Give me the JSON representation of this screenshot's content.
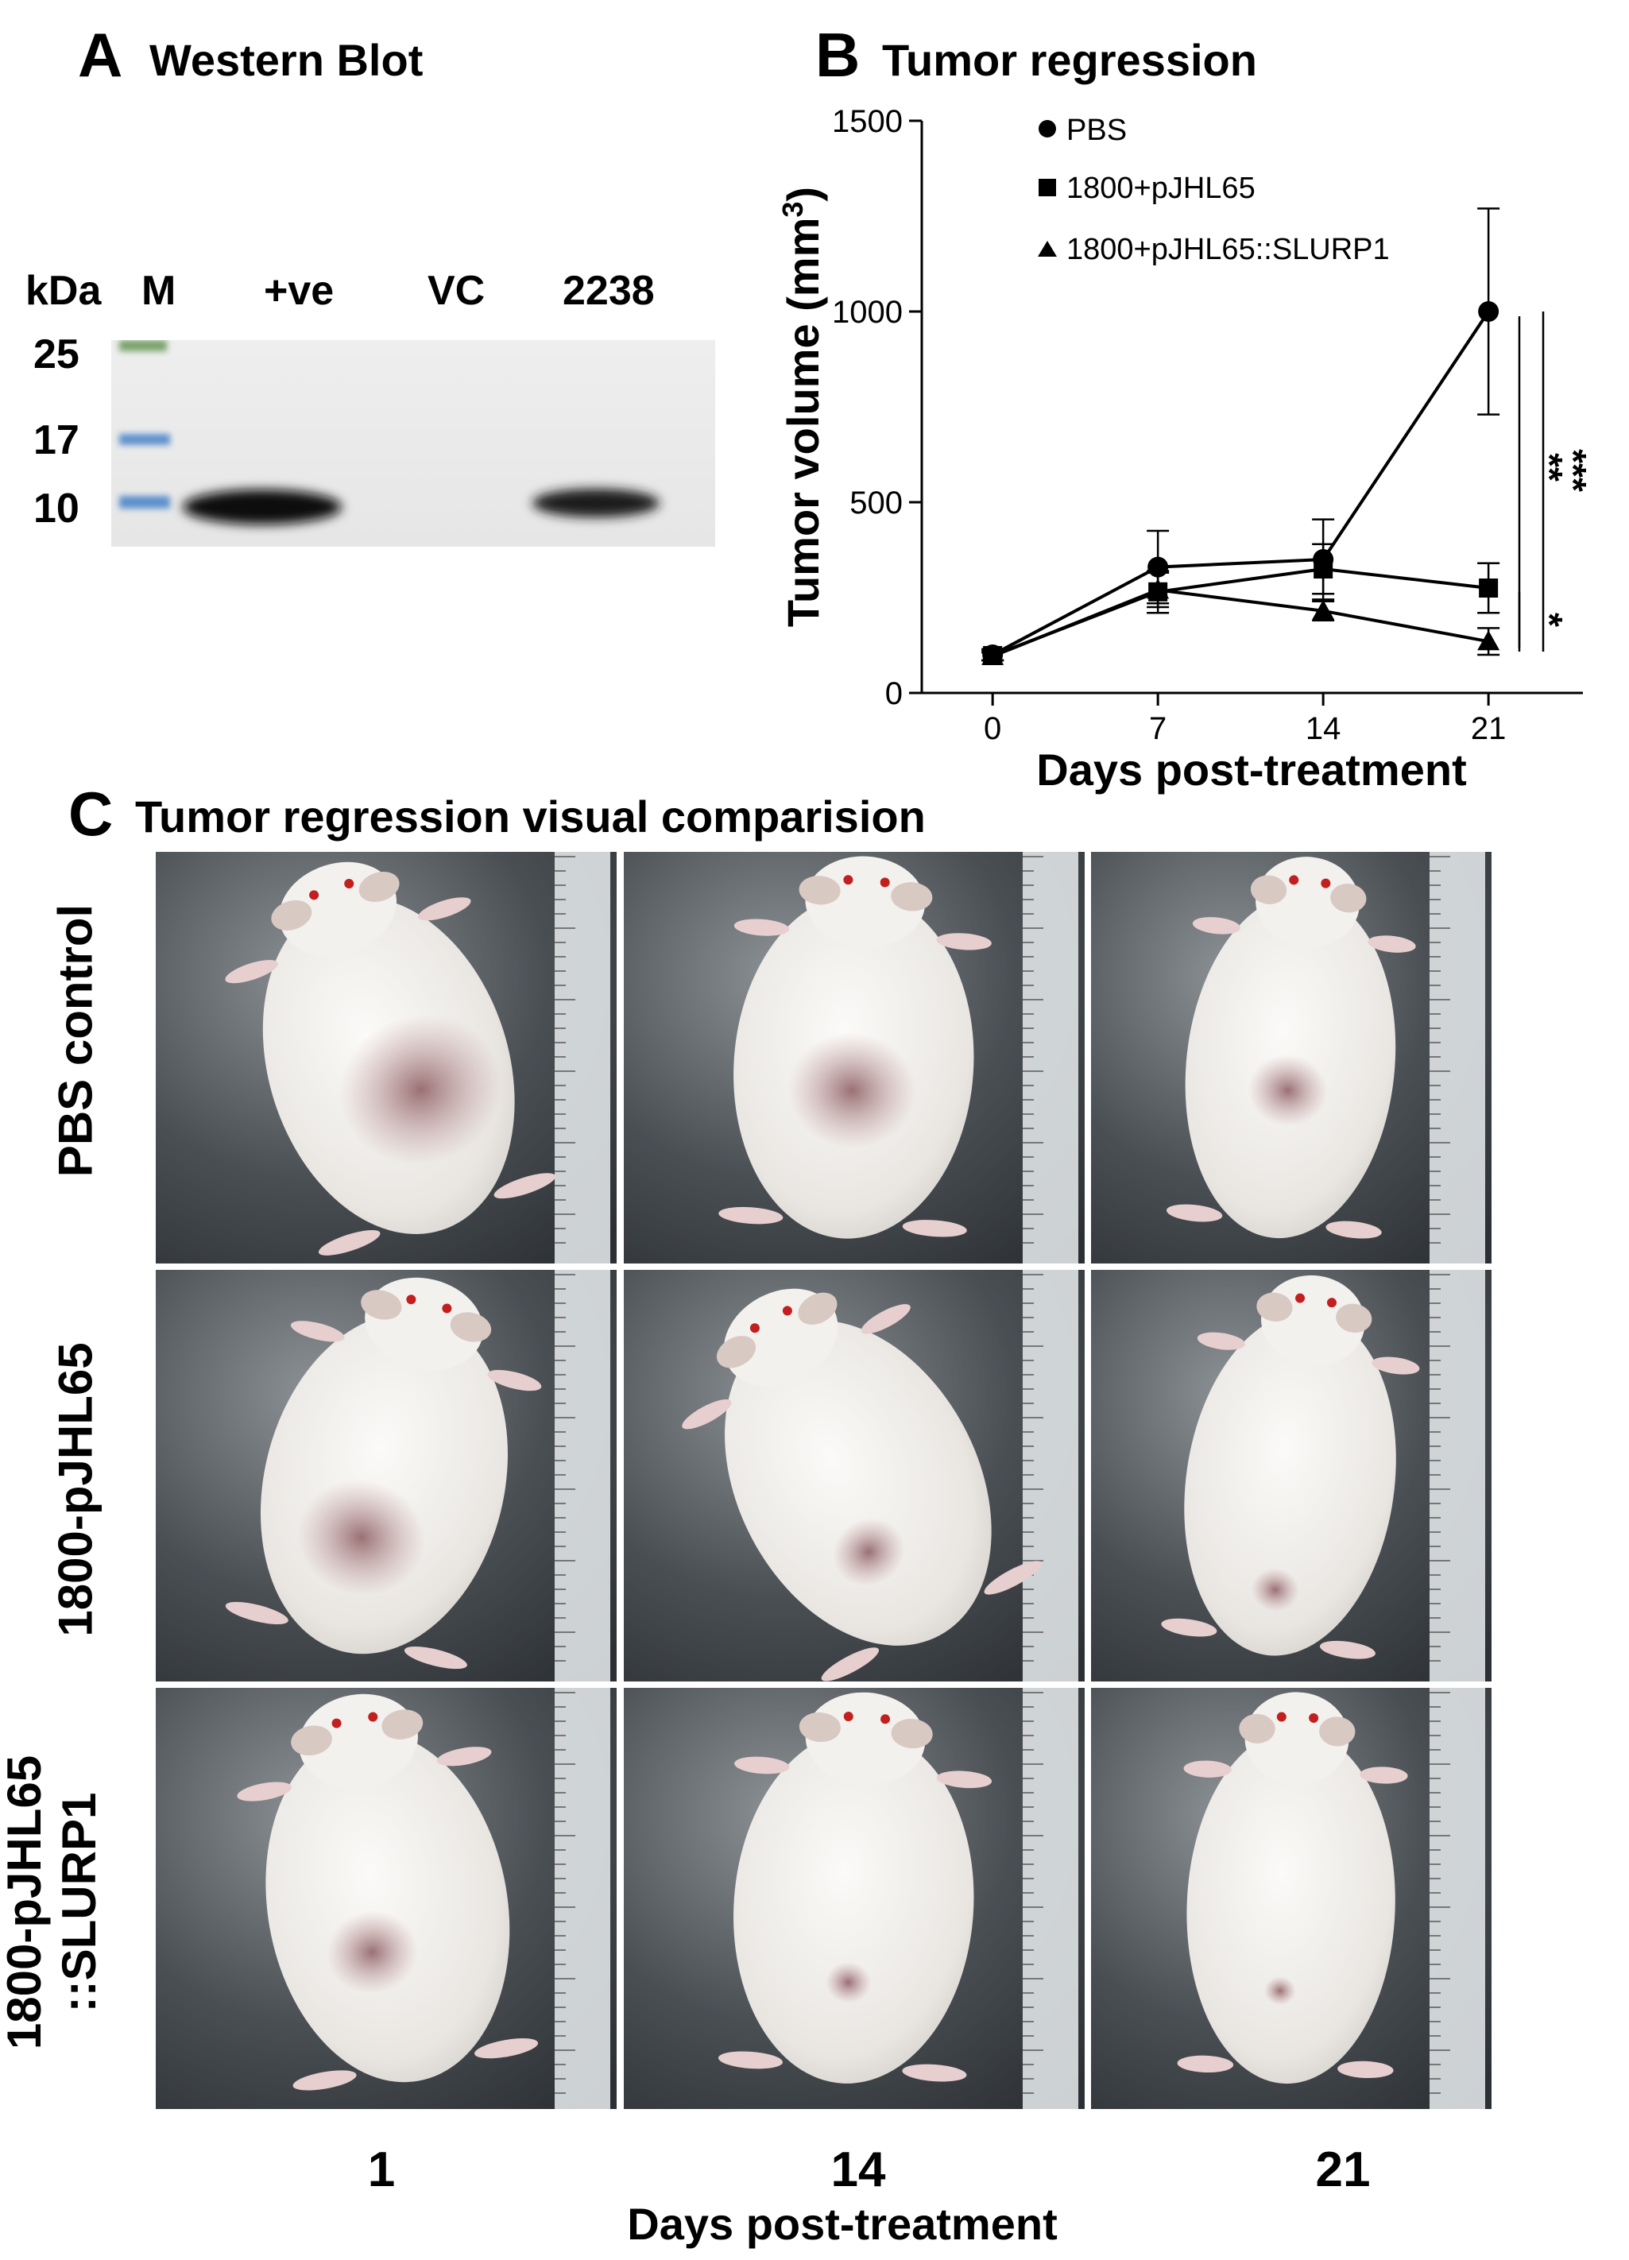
{
  "panelA": {
    "letter": "A",
    "title": "Western Blot",
    "header": {
      "kda": "kDa",
      "lanes": [
        "M",
        "+ve",
        "VC",
        "2238"
      ]
    },
    "markers": [
      "25",
      "17",
      "10"
    ]
  },
  "panelB": {
    "letter": "B",
    "title": "Tumor regression",
    "legend": [
      "PBS",
      "1800+pJHL65",
      "1800+pJHL65::SLURP1"
    ],
    "significance": [
      "**",
      "***",
      "*"
    ]
  },
  "chart_data": {
    "type": "line",
    "xlabel": "Days post-treatment",
    "ylabel": "Tumor volume (mm",
    "ylabel_sup": "3",
    "ylabel_close": ")",
    "x": [
      0,
      7,
      14,
      21
    ],
    "xticks": [
      "0",
      "7",
      "14",
      "21"
    ],
    "yticks": [
      "0",
      "500",
      "1000",
      "1500"
    ],
    "xlim": [
      -3,
      25
    ],
    "ylim": [
      0,
      1500
    ],
    "series": [
      {
        "name": "PBS",
        "marker": "circle",
        "values": [
          100,
          330,
          350,
          1000
        ],
        "errors": [
          15,
          95,
          105,
          270
        ]
      },
      {
        "name": "1800+pJHL65",
        "marker": "square",
        "values": [
          98,
          265,
          325,
          275
        ],
        "errors": [
          12,
          55,
          65,
          65
        ]
      },
      {
        "name": "1800+pJHL65::SLURP1",
        "marker": "triangle",
        "values": [
          96,
          270,
          215,
          135
        ],
        "errors": [
          10,
          45,
          25,
          35
        ]
      }
    ],
    "legend_position": "top-left"
  },
  "panelC": {
    "letter": "C",
    "title": "Tumor regression visual comparision",
    "rows": [
      {
        "label_lines": [
          "PBS control"
        ]
      },
      {
        "label_lines": [
          "1800-pJHL65"
        ]
      },
      {
        "label_lines": [
          "1800-pJHL65",
          "::SLURP1"
        ]
      }
    ],
    "days": [
      "1",
      "14",
      "21"
    ],
    "xlabel": "Days post-treatment"
  }
}
